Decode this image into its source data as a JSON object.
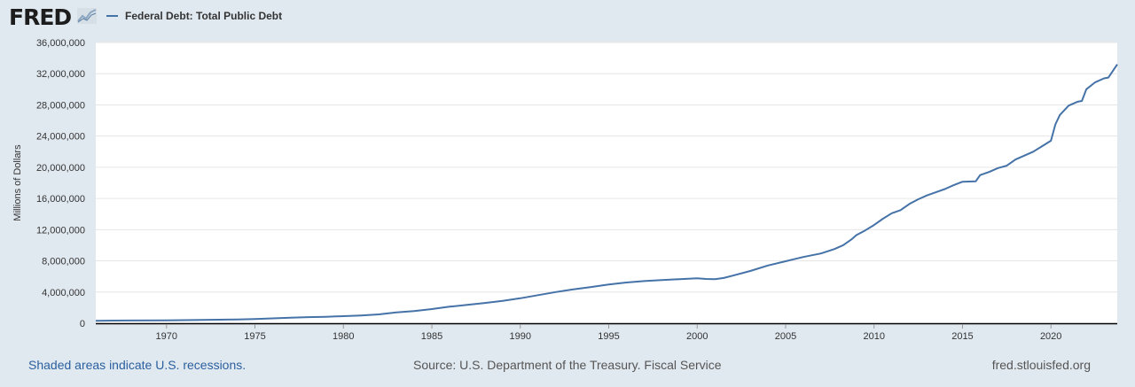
{
  "header": {
    "logo_text": "FRED",
    "logo_icon": "trend-line-icon",
    "legend_label": "Federal Debt: Total Public Debt",
    "series_color": "#4572a7"
  },
  "footer": {
    "recession_note": "Shaded areas indicate U.S. recessions.",
    "source": "Source: U.S. Department of the Treasury. Fiscal Service",
    "site": "fred.stlouisfed.org"
  },
  "chart_data": {
    "type": "line",
    "title": "",
    "xlabel": "",
    "ylabel": "Millions of Dollars",
    "xlim": [
      1966,
      2023.75
    ],
    "ylim": [
      0,
      36000000
    ],
    "y_ticks": [
      0,
      4000000,
      8000000,
      12000000,
      16000000,
      20000000,
      24000000,
      28000000,
      32000000,
      36000000
    ],
    "y_tick_labels": [
      "0",
      "4,000,000",
      "8,000,000",
      "12,000,000",
      "16,000,000",
      "20,000,000",
      "24,000,000",
      "28,000,000",
      "32,000,000",
      "36,000,000"
    ],
    "x_ticks": [
      1970,
      1975,
      1980,
      1985,
      1990,
      1995,
      2000,
      2005,
      2010,
      2015,
      2020
    ],
    "x_tick_labels": [
      "1970",
      "1975",
      "1980",
      "1985",
      "1990",
      "1995",
      "2000",
      "2005",
      "2010",
      "2015",
      "2020"
    ],
    "grid": true,
    "legend": "top-left",
    "series": [
      {
        "name": "Federal Debt: Total Public Debt",
        "color": "#4572a7",
        "x": [
          1966.0,
          1968.0,
          1970.0,
          1972.0,
          1974.0,
          1975.0,
          1976.0,
          1977.0,
          1978.0,
          1979.0,
          1980.0,
          1981.0,
          1982.0,
          1983.0,
          1984.0,
          1985.0,
          1986.0,
          1987.0,
          1988.0,
          1989.0,
          1990.0,
          1991.0,
          1992.0,
          1993.0,
          1994.0,
          1995.0,
          1996.0,
          1997.0,
          1998.0,
          1999.0,
          2000.0,
          2000.5,
          2001.0,
          2001.5,
          2002.0,
          2003.0,
          2004.0,
          2005.0,
          2006.0,
          2007.0,
          2007.75,
          2008.25,
          2008.75,
          2009.0,
          2009.5,
          2010.0,
          2010.5,
          2011.0,
          2011.5,
          2012.0,
          2012.5,
          2013.0,
          2013.5,
          2014.0,
          2014.5,
          2015.0,
          2015.75,
          2016.0,
          2016.5,
          2017.0,
          2017.5,
          2018.0,
          2018.5,
          2019.0,
          2019.5,
          2020.0,
          2020.25,
          2020.5,
          2021.0,
          2021.5,
          2021.75,
          2022.0,
          2022.5,
          2023.0,
          2023.25,
          2023.75
        ],
        "y": [
          320000,
          350000,
          380000,
          430000,
          480000,
          540000,
          630000,
          700000,
          780000,
          830000,
          910000,
          1000000,
          1140000,
          1380000,
          1570000,
          1820000,
          2120000,
          2350000,
          2600000,
          2860000,
          3200000,
          3600000,
          4000000,
          4350000,
          4640000,
          4970000,
          5220000,
          5410000,
          5530000,
          5660000,
          5770000,
          5680000,
          5660000,
          5800000,
          6100000,
          6700000,
          7400000,
          7950000,
          8500000,
          8950000,
          9500000,
          10000000,
          10800000,
          11300000,
          11900000,
          12600000,
          13400000,
          14100000,
          14500000,
          15300000,
          15900000,
          16400000,
          16800000,
          17200000,
          17700000,
          18150000,
          18200000,
          19000000,
          19400000,
          19900000,
          20200000,
          21000000,
          21500000,
          22000000,
          22700000,
          23400000,
          25500000,
          26700000,
          27900000,
          28400000,
          28500000,
          30000000,
          30900000,
          31400000,
          31500000,
          33200000
        ]
      }
    ]
  }
}
